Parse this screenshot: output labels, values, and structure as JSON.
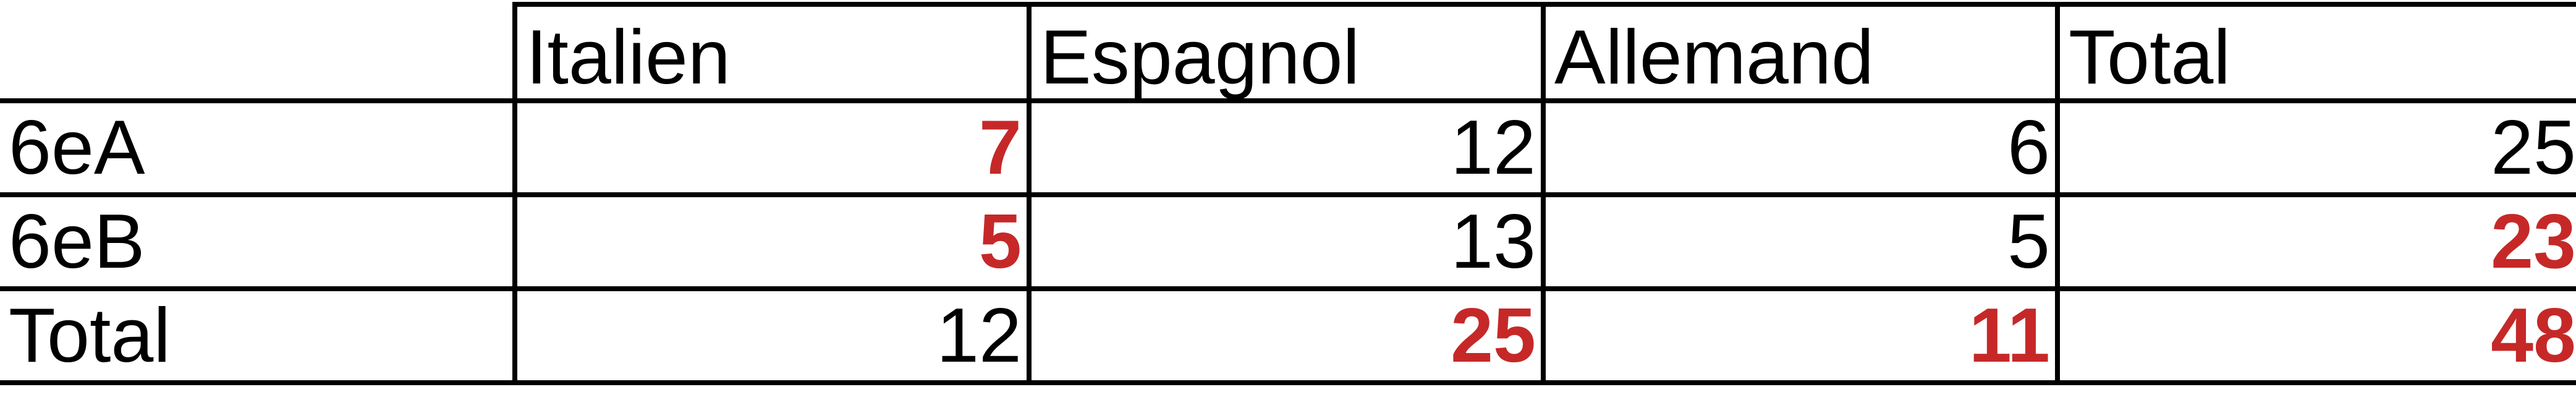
{
  "table": {
    "corner": "",
    "headers": [
      "Italien",
      "Espagnol",
      "Allemand",
      "Total"
    ],
    "rows": [
      {
        "label": "6eA",
        "values": [
          "7",
          "12",
          "6",
          "25"
        ],
        "highlighted": [
          true,
          false,
          false,
          false
        ]
      },
      {
        "label": "6eB",
        "values": [
          "5",
          "13",
          "5",
          "23"
        ],
        "highlighted": [
          true,
          false,
          false,
          true
        ]
      },
      {
        "label": "Total",
        "values": [
          "12",
          "25",
          "11",
          "48"
        ],
        "highlighted": [
          false,
          true,
          true,
          true
        ]
      }
    ]
  },
  "colors": {
    "highlight": "#c62828",
    "text": "#000000",
    "grid": "#000000"
  }
}
